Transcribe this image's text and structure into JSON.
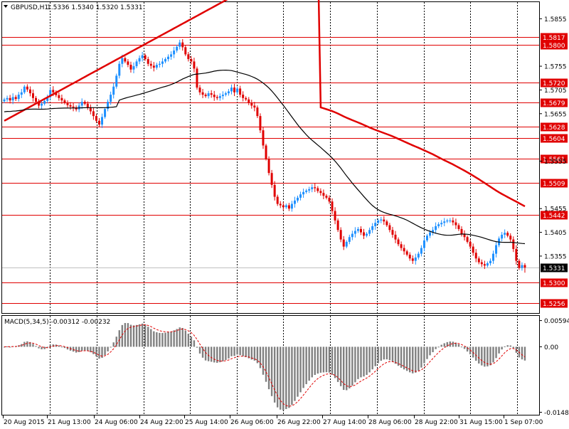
{
  "header": {
    "symbol_text": "GBPUSD,H1",
    "ohlc_text": "1.5336 1.5340 1.5320 1.5331"
  },
  "colors": {
    "background": "#ffffff",
    "frame": "#000000",
    "grid": "#000000",
    "bull_candle": "#1e90ff",
    "bear_candle": "#e00000",
    "level_line": "#e00000",
    "ma_slow": "#e00000",
    "ma_fast": "#000000",
    "macd_hist": "#808080",
    "macd_signal": "#e00000",
    "last_price_bg": "#000000"
  },
  "chart_data": {
    "type": "candlestick",
    "title": "GBPUSD,H1",
    "ohlc_last": [
      1.5336,
      1.534,
      1.532,
      1.5331
    ],
    "ylim": [
      1.5235,
      1.589
    ],
    "price_axis_ticks": [
      "1.5855",
      "1.5755",
      "1.5705",
      "1.5655",
      "1.5555",
      "1.5455",
      "1.5405",
      "1.5355"
    ],
    "x_tick_labels": [
      "20 Aug 2015",
      "21 Aug 13:00",
      "24 Aug 06:00",
      "24 Aug 22:00",
      "25 Aug 14:00",
      "26 Aug 06:00",
      "26 Aug 22:00",
      "27 Aug 14:00",
      "28 Aug 06:00",
      "28 Aug 22:00",
      "31 Aug 15:00",
      "1 Sep 07:00"
    ],
    "horizontal_levels": [
      "1.5817",
      "1.5800",
      "1.5720",
      "1.5679",
      "1.5628",
      "1.5604",
      "1.5561",
      "1.5509",
      "1.5442",
      "1.5300",
      "1.5256"
    ],
    "last_price": "1.5331",
    "close_series": [
      1.5685,
      1.5688,
      1.5683,
      1.569,
      1.5686,
      1.5695,
      1.57,
      1.5712,
      1.5706,
      1.5698,
      1.5688,
      1.568,
      1.5672,
      1.5676,
      1.5682,
      1.569,
      1.5705,
      1.57,
      1.5694,
      1.5688,
      1.5683,
      1.5678,
      1.5673,
      1.567,
      1.5668,
      1.5664,
      1.5672,
      1.568,
      1.5676,
      1.5668,
      1.566,
      1.565,
      1.564,
      1.5632,
      1.5648,
      1.5665,
      1.568,
      1.5695,
      1.5712,
      1.5735,
      1.576,
      1.5772,
      1.5765,
      1.5758,
      1.5748,
      1.5755,
      1.5765,
      1.5772,
      1.5778,
      1.577,
      1.576,
      1.5756,
      1.5752,
      1.5758,
      1.576,
      1.5765,
      1.577,
      1.5775,
      1.578,
      1.5788,
      1.5796,
      1.5805,
      1.5795,
      1.578,
      1.577,
      1.5765,
      1.575,
      1.571,
      1.57,
      1.5695,
      1.5692,
      1.5698,
      1.5695,
      1.569,
      1.5688,
      1.5692,
      1.5695,
      1.5698,
      1.5702,
      1.571,
      1.57,
      1.5708,
      1.5695,
      1.5688,
      1.5685,
      1.5678,
      1.5672,
      1.5668,
      1.565,
      1.562,
      1.5588,
      1.556,
      1.553,
      1.5505,
      1.548,
      1.5465,
      1.5462,
      1.5458,
      1.5462,
      1.5455,
      1.5465,
      1.5472,
      1.5478,
      1.5485,
      1.549,
      1.5493,
      1.5496,
      1.55,
      1.5498,
      1.5492,
      1.5488,
      1.5482,
      1.5478,
      1.547,
      1.545,
      1.543,
      1.541,
      1.539,
      1.5375,
      1.5385,
      1.5395,
      1.5402,
      1.5408,
      1.5412,
      1.5405,
      1.5398,
      1.5402,
      1.541,
      1.5418,
      1.5425,
      1.543,
      1.5432,
      1.5428,
      1.542,
      1.541,
      1.54,
      1.539,
      1.538,
      1.5372,
      1.5365,
      1.5358,
      1.535,
      1.5345,
      1.5352,
      1.536,
      1.5372,
      1.5388,
      1.5398,
      1.5405,
      1.541,
      1.5418,
      1.5422,
      1.5425,
      1.5428,
      1.543,
      1.543,
      1.5426,
      1.542,
      1.5412,
      1.5402,
      1.5395,
      1.5385,
      1.5375,
      1.5362,
      1.535,
      1.5342,
      1.5338,
      1.5335,
      1.534,
      1.5345,
      1.536,
      1.5378,
      1.5392,
      1.54,
      1.5404,
      1.5398,
      1.539,
      1.537,
      1.5345,
      1.533,
      1.5336,
      1.5331
    ],
    "ma_fast_name": "",
    "ma_slow_name": "",
    "macd": {
      "label_text": "MACD(5,34,5) -0.00312 -0.00232",
      "params": "5,34,5",
      "main": "-0.00312",
      "signal": "-0.00232",
      "axis_ticks": [
        "0.00594",
        "0.00",
        "-0.01483"
      ],
      "ylim": [
        -0.0154,
        0.007
      ]
    }
  }
}
